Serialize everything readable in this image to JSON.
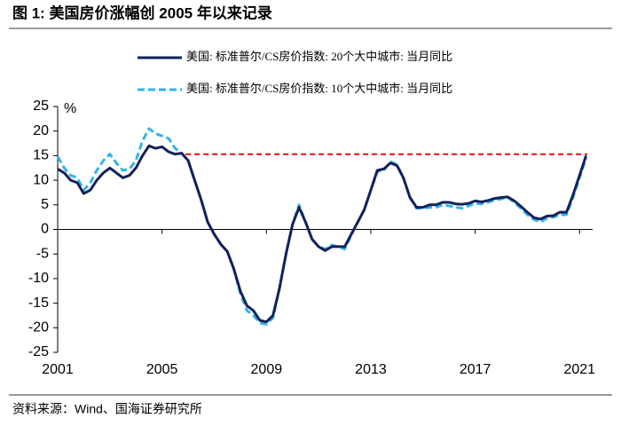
{
  "chart_data": {
    "type": "line",
    "title": "图 1:  美国房价涨幅创 2005 年以来记录",
    "source": "资料来源：Wind、国海证券研究所",
    "y_label": "%",
    "x": [
      2001,
      2001.25,
      2001.5,
      2001.75,
      2002,
      2002.25,
      2002.5,
      2002.75,
      2003,
      2003.25,
      2003.5,
      2003.75,
      2004,
      2004.25,
      2004.5,
      2004.75,
      2005,
      2005.25,
      2005.5,
      2005.75,
      2006,
      2006.25,
      2006.5,
      2006.75,
      2007,
      2007.25,
      2007.5,
      2007.75,
      2008,
      2008.25,
      2008.5,
      2008.75,
      2009,
      2009.25,
      2009.5,
      2009.75,
      2010,
      2010.25,
      2010.5,
      2010.75,
      2011,
      2011.25,
      2011.5,
      2011.75,
      2012,
      2012.25,
      2012.5,
      2012.75,
      2013,
      2013.25,
      2013.5,
      2013.75,
      2014,
      2014.25,
      2014.5,
      2014.75,
      2015,
      2015.25,
      2015.5,
      2015.75,
      2016,
      2016.25,
      2016.5,
      2016.75,
      2017,
      2017.25,
      2017.5,
      2017.75,
      2018,
      2018.25,
      2018.5,
      2018.75,
      2019,
      2019.25,
      2019.5,
      2019.75,
      2020,
      2020.25,
      2020.5,
      2020.75,
      2021,
      2021.25
    ],
    "series": [
      {
        "name": "美国: 标准普尔/CS房价指数: 20个大中城市: 当月同比",
        "color": "#14215a",
        "style": "solid",
        "values": [
          12.3,
          11.5,
          10,
          9.5,
          7.3,
          8,
          10,
          11.5,
          12.5,
          11.5,
          10.5,
          11,
          12.5,
          15,
          17,
          16.5,
          16.8,
          15.8,
          15.3,
          15.5,
          14,
          10,
          6,
          1.5,
          -1,
          -3,
          -4.5,
          -8,
          -12.5,
          -15.5,
          -16.5,
          -18.5,
          -18.8,
          -17.5,
          -12,
          -5,
          1,
          4.5,
          1.5,
          -2,
          -3.5,
          -4.3,
          -3.5,
          -3.5,
          -3.5,
          -1,
          1.5,
          4,
          8,
          12,
          12.3,
          13.5,
          13,
          10.5,
          6.5,
          4.5,
          4.5,
          5,
          5,
          5.5,
          5.5,
          5.2,
          5.1,
          5.3,
          5.8,
          5.6,
          5.9,
          6.3,
          6.5,
          6.6,
          5.8,
          4.7,
          3.5,
          2.4,
          2.1,
          2.7,
          2.8,
          3.5,
          3.5,
          7,
          11,
          15
        ]
      },
      {
        "name": "美国: 标准普尔/CS房价指数: 10个大中城市: 当月同比",
        "color": "#33b4e8",
        "style": "dashed",
        "values": [
          14.8,
          12.5,
          11,
          10.5,
          8,
          9.5,
          12,
          14,
          15.3,
          13.5,
          12,
          12.3,
          14,
          18,
          20.5,
          19.5,
          19,
          18.5,
          16.5,
          15.5,
          14,
          10,
          6,
          1.5,
          -1,
          -3,
          -4.5,
          -8,
          -13,
          -16.5,
          -17.5,
          -19,
          -19.3,
          -18,
          -12,
          -5,
          1,
          5,
          1.5,
          -2,
          -3.5,
          -4,
          -3.2,
          -3.5,
          -4,
          -1.2,
          1.5,
          4,
          8,
          11.8,
          12,
          13.8,
          13.2,
          10.5,
          6.5,
          4.3,
          4.3,
          4.5,
          4.5,
          5,
          4.8,
          4.5,
          4.3,
          4.8,
          5.3,
          5.2,
          5.5,
          6,
          6.2,
          6.5,
          5.5,
          4.3,
          3,
          2,
          1.5,
          2.3,
          2.5,
          3,
          3,
          6.5,
          10.5,
          14.5
        ]
      }
    ],
    "reference_line": {
      "y": 15.3,
      "x": [
        2005.9,
        2021.3
      ],
      "color": "#e01010"
    },
    "xlim": [
      2001,
      2021.5
    ],
    "xticks": [
      2001,
      2005,
      2009,
      2013,
      2017,
      2021
    ],
    "ylim": [
      -25,
      25
    ],
    "yticks": [
      -25,
      -20,
      -15,
      -10,
      -5,
      0,
      5,
      10,
      15,
      20,
      25
    ],
    "legend": "top"
  }
}
